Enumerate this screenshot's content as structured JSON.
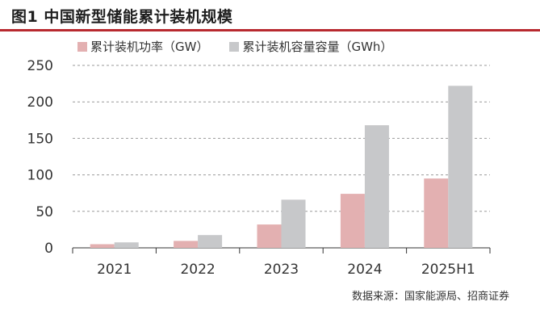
{
  "header": {
    "title": "图1  中国新型储能累计装机规模",
    "source": "数据来源：国家能源局、招商证券"
  },
  "colors": {
    "accent_rule": "#b8292f",
    "series_power": "#e3b0b1",
    "series_capacity": "#c7c8ca"
  },
  "chart_data": {
    "type": "bar",
    "categories": [
      "2021",
      "2022",
      "2023",
      "2024",
      "2025H1"
    ],
    "series": [
      {
        "name": "累计装机功率（GW）",
        "values": [
          5,
          9.5,
          32,
          74,
          95
        ]
      },
      {
        "name": "累计装机容量容量（GWh）",
        "values": [
          7.5,
          17.5,
          66,
          168,
          222
        ]
      }
    ],
    "ylim": [
      0,
      250
    ],
    "yticks": [
      0,
      50,
      100,
      150,
      200,
      250
    ],
    "grid": true,
    "legend_position": "top-left"
  }
}
